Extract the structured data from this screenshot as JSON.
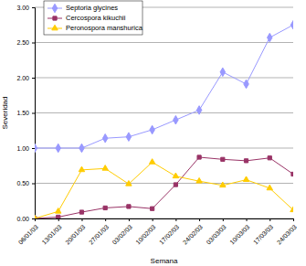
{
  "chart_data": {
    "type": "line",
    "x_label": "Semana",
    "y_label": "Severidad",
    "categories": [
      "06/01/03",
      "13/01/03",
      "20/01/03",
      "27/01/03",
      "03/02/03",
      "10/02/03",
      "17/02/03",
      "24/02/03",
      "03/03/03",
      "10/03/03",
      "17/03/03",
      "24/03/03"
    ],
    "series": [
      {
        "name": "Septoria glycines",
        "color": "#9999ff",
        "marker": "diamond",
        "values": [
          1.0,
          1.0,
          1.0,
          1.14,
          1.16,
          1.26,
          1.4,
          1.54,
          2.08,
          1.91,
          2.57,
          2.75
        ]
      },
      {
        "name": "Cercospora kikuchii",
        "color": "#993366",
        "marker": "square",
        "values": [
          0.0,
          0.02,
          0.09,
          0.15,
          0.17,
          0.14,
          0.48,
          0.87,
          0.84,
          0.82,
          0.86,
          0.63
        ]
      },
      {
        "name": "Peronospora manshurica",
        "color": "#ffcc00",
        "marker": "triangle",
        "values": [
          0.0,
          0.1,
          0.69,
          0.71,
          0.49,
          0.8,
          0.6,
          0.53,
          0.47,
          0.55,
          0.43,
          0.12
        ]
      }
    ],
    "ylim": [
      0,
      3
    ],
    "yticks": [
      {
        "value": 0,
        "label": "0.00"
      },
      {
        "value": 0.5,
        "label": "0.50"
      },
      {
        "value": 1,
        "label": "1.00"
      },
      {
        "value": 1.5,
        "label": "1.50"
      },
      {
        "value": 2,
        "label": "2.00"
      },
      {
        "value": 2.5,
        "label": "2.50"
      },
      {
        "value": 3,
        "label": "3.00"
      }
    ],
    "grid": true,
    "legend": "top-left"
  }
}
